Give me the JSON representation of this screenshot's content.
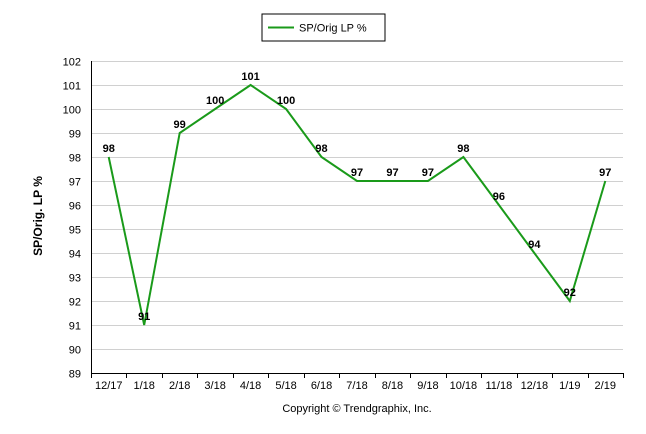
{
  "chart_data": {
    "type": "line",
    "categories": [
      "12/17",
      "1/18",
      "2/18",
      "3/18",
      "4/18",
      "5/18",
      "6/18",
      "7/18",
      "8/18",
      "9/18",
      "10/18",
      "11/18",
      "12/18",
      "1/19",
      "2/19"
    ],
    "series": [
      {
        "name": "SP/Orig LP %",
        "values": [
          98,
          91,
          99,
          100,
          101,
          100,
          98,
          97,
          97,
          97,
          98,
          96,
          94,
          92,
          97
        ]
      }
    ],
    "data_labels": [
      "98",
      "91",
      "99",
      "100",
      "101",
      "100",
      "98",
      "97",
      "97",
      "97",
      "98",
      "96",
      "94",
      "92",
      "97"
    ],
    "y_ticks": [
      "102",
      "101",
      "100",
      "99",
      "98",
      "97",
      "96",
      "95",
      "94",
      "93",
      "92",
      "91",
      "90",
      "89"
    ],
    "ylabel": "SP/Orig. LP %",
    "xlabel": "",
    "ylim": [
      89,
      102
    ],
    "grid": true,
    "legend_position": "top-center",
    "line_color": "#1a9a1a",
    "grid_color": "#d0d0d0"
  },
  "footer": {
    "copyright": "Copyright © Trendgraphix, Inc."
  }
}
